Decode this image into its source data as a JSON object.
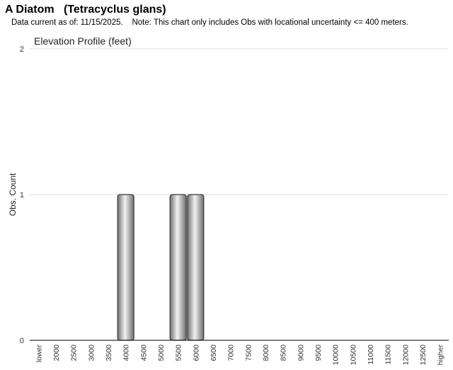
{
  "header": {
    "title": "A Diatom   (Tetracyclus glans)",
    "subtitle": "Data current as of: 11/15/2025.    Note: This chart only includes Obs with locational uncertainty <= 400 meters."
  },
  "chart_data": {
    "type": "bar",
    "title": "Elevation Profile (feet)",
    "xlabel": "",
    "ylabel": "Obs. Count",
    "ylim": [
      0,
      2
    ],
    "yticks": [
      0,
      1,
      2
    ],
    "grid": true,
    "categories": [
      "lower",
      "2000",
      "2500",
      "3000",
      "3500",
      "4000",
      "4500",
      "5000",
      "5500",
      "6000",
      "6500",
      "7000",
      "7500",
      "8000",
      "8500",
      "9000",
      "9500",
      "10000",
      "10500",
      "11000",
      "11500",
      "12000",
      "12500",
      "higher"
    ],
    "values": [
      0,
      0,
      0,
      0,
      0,
      1,
      0,
      0,
      1,
      1,
      0,
      0,
      0,
      0,
      0,
      0,
      0,
      0,
      0,
      0,
      0,
      0,
      0,
      0
    ],
    "colors": {
      "bar": "#a8a8a8",
      "bar_highlight": "#f2f2f2",
      "grid": "#e0e0e0",
      "axis": "#000000"
    }
  }
}
